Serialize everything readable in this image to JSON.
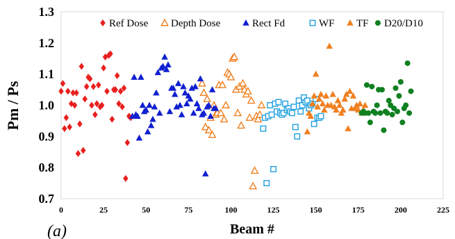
{
  "chart_data": {
    "type": "scatter",
    "panel_label": "(a)",
    "xlabel": "Beam #",
    "ylabel": "Pm / Ps",
    "xlim": [
      0,
      225
    ],
    "ylim": [
      0.7,
      1.3
    ],
    "x_ticks": [
      0,
      25,
      50,
      75,
      100,
      125,
      150,
      175,
      200,
      225
    ],
    "y_ticks": [
      0.7,
      0.8,
      0.9,
      1.0,
      1.1,
      1.2,
      1.3
    ],
    "y_tick_labels": [
      "0.7",
      "0.8",
      "0.9",
      "1.0",
      "1.1",
      "1.2",
      "1.3"
    ],
    "grid": false,
    "legend_placement": "top",
    "series": [
      {
        "name": "Ref Dose",
        "marker": "diamond",
        "color": "#e8201e",
        "points": [
          [
            0,
            1.045
          ],
          [
            1,
            1.07
          ],
          [
            2,
            0.925
          ],
          [
            3,
            0.96
          ],
          [
            4,
            1.045
          ],
          [
            5,
            0.93
          ],
          [
            6,
            1.005
          ],
          [
            7,
            1.04
          ],
          [
            8,
            1.0
          ],
          [
            9,
            1.04
          ],
          [
            10,
            0.845
          ],
          [
            11,
            0.94
          ],
          [
            12,
            1.125
          ],
          [
            13,
            0.855
          ],
          [
            14,
            1.02
          ],
          [
            15,
            1.06
          ],
          [
            16,
            1.09
          ],
          [
            17,
            1.085
          ],
          [
            18,
            1.0
          ],
          [
            19,
            1.06
          ],
          [
            20,
            0.97
          ],
          [
            21,
            1.005
          ],
          [
            22,
            1.065
          ],
          [
            23,
            0.995
          ],
          [
            24,
            1.0
          ],
          [
            25,
            1.12
          ],
          [
            26,
            1.155
          ],
          [
            27,
            1.045
          ],
          [
            28,
            1.16
          ],
          [
            29,
            1.165
          ],
          [
            30,
            0.955
          ],
          [
            31,
            1.05
          ],
          [
            32,
            1.05
          ],
          [
            33,
            1.095
          ],
          [
            34,
            1.005
          ],
          [
            35,
            1.045
          ],
          [
            36,
            0.995
          ],
          [
            37,
            1.055
          ],
          [
            38,
            0.765
          ],
          [
            39,
            0.88
          ],
          [
            40,
            0.965
          ],
          [
            41,
            0.96
          ]
        ]
      },
      {
        "name": "Depth Dose",
        "marker": "triangle-open",
        "color": "#f08020",
        "points": [
          [
            83,
            1.07
          ],
          [
            84,
            1.04
          ],
          [
            85,
            0.93
          ],
          [
            86,
            1.02
          ],
          [
            87,
            0.92
          ],
          [
            88,
            0.96
          ],
          [
            89,
            0.905
          ],
          [
            90,
            1.0
          ],
          [
            91,
            0.97
          ],
          [
            92,
            0.975
          ],
          [
            93,
            1.065
          ],
          [
            94,
            0.975
          ],
          [
            95,
            1.065
          ],
          [
            96,
            0.955
          ],
          [
            97,
            1.0
          ],
          [
            98,
            1.105
          ],
          [
            99,
            1.1
          ],
          [
            100,
            1.09
          ],
          [
            101,
            1.15
          ],
          [
            102,
            1.155
          ],
          [
            103,
            1.05
          ],
          [
            104,
            0.975
          ],
          [
            105,
            1.06
          ],
          [
            106,
            0.935
          ],
          [
            107,
            1.07
          ],
          [
            108,
            1.05
          ],
          [
            109,
            1.035
          ],
          [
            110,
            1.045
          ],
          [
            111,
            0.96
          ],
          [
            112,
            1.015
          ],
          [
            113,
            0.74
          ],
          [
            114,
            0.79
          ],
          [
            115,
            0.965
          ],
          [
            116,
            0.955
          ],
          [
            117,
            0.97
          ],
          [
            118,
            1.0
          ]
        ]
      },
      {
        "name": "Rect Fd",
        "marker": "triangle",
        "color": "#1020d0",
        "points": [
          [
            42,
            0.965
          ],
          [
            43,
            1.09
          ],
          [
            44,
            0.97
          ],
          [
            45,
            0.965
          ],
          [
            46,
            0.895
          ],
          [
            47,
            1.09
          ],
          [
            48,
            1.0
          ],
          [
            49,
            0.98
          ],
          [
            50,
            0.985
          ],
          [
            51,
            0.915
          ],
          [
            52,
            1.0
          ],
          [
            53,
            0.935
          ],
          [
            54,
            0.955
          ],
          [
            55,
            0.995
          ],
          [
            56,
            1.04
          ],
          [
            57,
            1.105
          ],
          [
            58,
            0.975
          ],
          [
            59,
            1.12
          ],
          [
            60,
            1.125
          ],
          [
            61,
            1.155
          ],
          [
            62,
            1.115
          ],
          [
            63,
            1.13
          ],
          [
            64,
            0.98
          ],
          [
            65,
            1.055
          ],
          [
            66,
            1.055
          ],
          [
            67,
            1.035
          ],
          [
            68,
            0.995
          ],
          [
            69,
            1.07
          ],
          [
            70,
            1.0
          ],
          [
            71,
            0.97
          ],
          [
            72,
            1.06
          ],
          [
            73,
            1.04
          ],
          [
            74,
            1.005
          ],
          [
            75,
            1.03
          ],
          [
            76,
            1.02
          ],
          [
            77,
            1.055
          ],
          [
            78,
            0.975
          ],
          [
            79,
            1.06
          ],
          [
            80,
            1.005
          ],
          [
            81,
            0.99
          ],
          [
            82,
            1.085
          ],
          [
            83,
            0.97
          ],
          [
            84,
            0.975
          ],
          [
            85,
            0.78
          ],
          [
            86,
            0.995
          ],
          [
            87,
            1.0
          ],
          [
            88,
            0.965
          ],
          [
            89,
            1.05
          ],
          [
            90,
            0.99
          ],
          [
            91,
            0.99
          ]
        ]
      },
      {
        "name": "WF",
        "marker": "square-open",
        "color": "#20a0e0",
        "points": [
          [
            119,
            0.925
          ],
          [
            120,
            0.96
          ],
          [
            121,
            0.75
          ],
          [
            122,
            0.965
          ],
          [
            123,
            1.0
          ],
          [
            124,
            0.97
          ],
          [
            125,
            0.795
          ],
          [
            126,
            1.005
          ],
          [
            127,
            0.98
          ],
          [
            128,
            1.01
          ],
          [
            129,
            0.975
          ],
          [
            130,
            0.97
          ],
          [
            131,
            0.975
          ],
          [
            132,
            1.005
          ],
          [
            133,
            0.985
          ],
          [
            134,
            0.99
          ],
          [
            135,
            0.98
          ],
          [
            136,
            0.975
          ],
          [
            137,
            0.995
          ],
          [
            138,
            0.93
          ],
          [
            139,
            0.9
          ],
          [
            140,
            1.015
          ],
          [
            141,
            0.98
          ],
          [
            142,
            1.0
          ],
          [
            143,
            1.025
          ],
          [
            144,
            1.01
          ],
          [
            145,
            1.015
          ],
          [
            146,
            0.99
          ],
          [
            147,
            1.0
          ],
          [
            148,
            1.005
          ],
          [
            149,
            0.94
          ],
          [
            150,
            1.02
          ],
          [
            151,
            0.96
          ],
          [
            152,
            0.96
          ],
          [
            153,
            0.965
          ]
        ]
      },
      {
        "name": "TF",
        "marker": "triangle",
        "color": "#f08020",
        "points": [
          [
            145,
            0.915
          ],
          [
            146,
            0.975
          ],
          [
            147,
            0.965
          ],
          [
            148,
            1.005
          ],
          [
            149,
            1.03
          ],
          [
            150,
            1.1
          ],
          [
            151,
            0.995
          ],
          [
            152,
            1.02
          ],
          [
            153,
            1.035
          ],
          [
            154,
            1.005
          ],
          [
            155,
            0.985
          ],
          [
            156,
            1.03
          ],
          [
            157,
            1.0
          ],
          [
            158,
            1.19
          ],
          [
            159,
            1.0
          ],
          [
            160,
            1.035
          ],
          [
            161,
            0.995
          ],
          [
            162,
            0.985
          ],
          [
            163,
            1.015
          ],
          [
            164,
            1.0
          ],
          [
            165,
            0.975
          ],
          [
            166,
            0.985
          ],
          [
            167,
            1.02
          ],
          [
            168,
            1.035
          ],
          [
            169,
            0.925
          ],
          [
            170,
            1.045
          ],
          [
            171,
            0.99
          ],
          [
            172,
            1.03
          ],
          [
            173,
            0.99
          ],
          [
            174,
            1.0
          ],
          [
            175,
            0.985
          ],
          [
            176,
            1.005
          ],
          [
            177,
            0.975
          ],
          [
            178,
            0.985
          ],
          [
            179,
            1.0
          ]
        ]
      },
      {
        "name": "D20/D10",
        "marker": "circle",
        "color": "#108020",
        "points": [
          [
            177,
            0.975
          ],
          [
            178,
            0.98
          ],
          [
            179,
            0.975
          ],
          [
            180,
            1.065
          ],
          [
            181,
            0.975
          ],
          [
            182,
            0.945
          ],
          [
            183,
            1.06
          ],
          [
            184,
            0.98
          ],
          [
            185,
            0.975
          ],
          [
            186,
            1.0
          ],
          [
            187,
            1.05
          ],
          [
            188,
            0.975
          ],
          [
            189,
            1.05
          ],
          [
            190,
            0.92
          ],
          [
            191,
            0.98
          ],
          [
            192,
            0.975
          ],
          [
            193,
            1.015
          ],
          [
            194,
            1.0
          ],
          [
            195,
            0.97
          ],
          [
            196,
            0.99
          ],
          [
            197,
            1.055
          ],
          [
            198,
            0.98
          ],
          [
            199,
            1.03
          ],
          [
            200,
            1.075
          ],
          [
            201,
            0.945
          ],
          [
            202,
            0.99
          ],
          [
            203,
            1.0
          ],
          [
            204,
            1.135
          ],
          [
            205,
            0.975
          ],
          [
            206,
            1.045
          ]
        ]
      }
    ]
  }
}
